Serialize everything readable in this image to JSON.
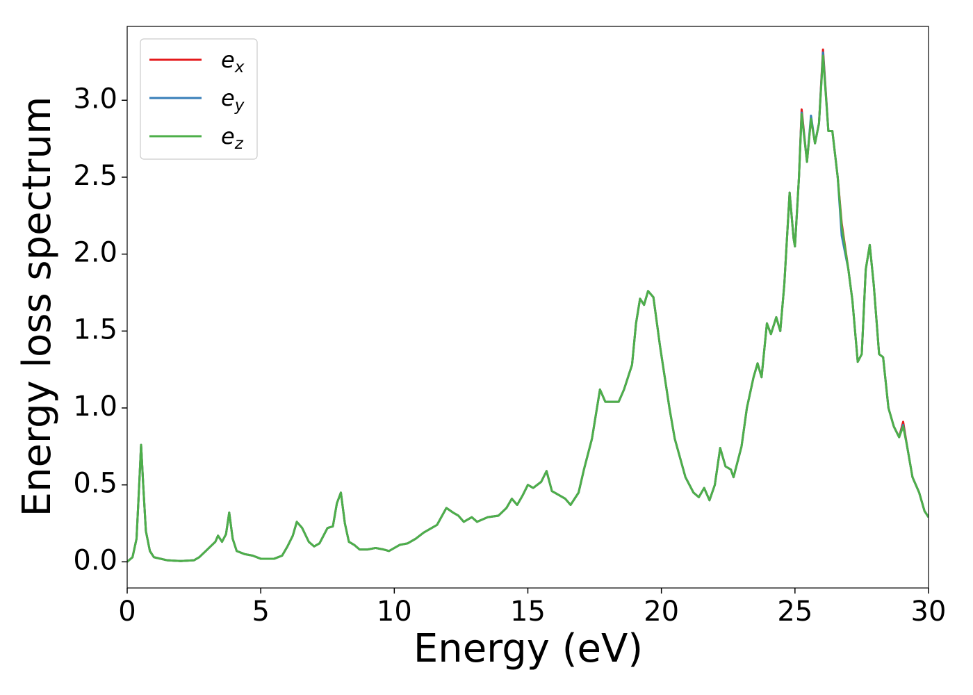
{
  "chart_data": {
    "type": "line",
    "xlabel": "Energy (eV)",
    "ylabel": "Energy loss spectrum",
    "xlim": [
      0,
      30
    ],
    "ylim": [
      -0.17,
      3.48
    ],
    "xticks": [
      0,
      5,
      10,
      15,
      20,
      25,
      30
    ],
    "yticks": [
      {
        "value": 0,
        "label": "0.0"
      },
      0.5,
      {
        "value": 1,
        "label": "1.0"
      },
      1.5,
      {
        "value": 2,
        "label": "2.0"
      },
      2.5,
      {
        "value": 3,
        "label": "3.0"
      }
    ],
    "legend": "upper left",
    "x": [
      0,
      0.2,
      0.35,
      0.45,
      0.52,
      0.6,
      0.7,
      0.85,
      1,
      1.5,
      2,
      2.5,
      2.7,
      3,
      3.3,
      3.4,
      3.55,
      3.7,
      3.82,
      3.95,
      4.1,
      4.4,
      4.7,
      5,
      5.5,
      5.8,
      6,
      6.2,
      6.35,
      6.55,
      6.8,
      7,
      7.2,
      7.5,
      7.7,
      7.85,
      8,
      8.15,
      8.3,
      8.5,
      8.7,
      9,
      9.3,
      9.6,
      9.8,
      10.2,
      10.5,
      10.8,
      11.1,
      11.4,
      11.6,
      11.95,
      12.2,
      12.4,
      12.6,
      12.9,
      13.1,
      13.5,
      13.9,
      14.2,
      14.4,
      14.6,
      14.8,
      15,
      15.2,
      15.5,
      15.7,
      15.9,
      16.1,
      16.4,
      16.6,
      16.9,
      17.1,
      17.4,
      17.7,
      17.9,
      18.2,
      18.4,
      18.6,
      18.9,
      19.05,
      19.2,
      19.35,
      19.5,
      19.7,
      19.95,
      20.3,
      20.5,
      20.9,
      21.2,
      21.4,
      21.6,
      21.8,
      22,
      22.2,
      22.4,
      22.6,
      22.7,
      23,
      23.2,
      23.45,
      23.6,
      23.75,
      23.95,
      24.1,
      24.3,
      24.45,
      24.6,
      24.8,
      24.95,
      25,
      25.15,
      25.25,
      25.45,
      25.6,
      25.75,
      25.9,
      26.05,
      26.25,
      26.4,
      26.6,
      26.75,
      27,
      27.15,
      27.35,
      27.5,
      27.65,
      27.8,
      27.95,
      28.15,
      28.3,
      28.5,
      28.7,
      28.9,
      29.05,
      29.2,
      29.4,
      29.65,
      29.85,
      30
    ],
    "series": [
      {
        "name": "ex",
        "color": "#e41a1c",
        "values": [
          0,
          0.03,
          0.15,
          0.5,
          0.76,
          0.5,
          0.2,
          0.07,
          0.03,
          0.01,
          0.005,
          0.01,
          0.03,
          0.08,
          0.13,
          0.17,
          0.13,
          0.18,
          0.32,
          0.15,
          0.07,
          0.05,
          0.04,
          0.02,
          0.02,
          0.04,
          0.1,
          0.17,
          0.26,
          0.22,
          0.13,
          0.1,
          0.12,
          0.22,
          0.23,
          0.38,
          0.45,
          0.25,
          0.13,
          0.11,
          0.08,
          0.08,
          0.09,
          0.08,
          0.07,
          0.11,
          0.12,
          0.15,
          0.19,
          0.22,
          0.24,
          0.35,
          0.32,
          0.3,
          0.26,
          0.29,
          0.26,
          0.29,
          0.3,
          0.35,
          0.41,
          0.37,
          0.43,
          0.5,
          0.48,
          0.52,
          0.59,
          0.46,
          0.44,
          0.41,
          0.37,
          0.45,
          0.6,
          0.8,
          1.12,
          1.04,
          1.04,
          1.04,
          1.12,
          1.28,
          1.55,
          1.71,
          1.67,
          1.76,
          1.72,
          1.4,
          1.0,
          0.8,
          0.55,
          0.45,
          0.42,
          0.48,
          0.4,
          0.5,
          0.74,
          0.62,
          0.6,
          0.55,
          0.75,
          1.0,
          1.2,
          1.29,
          1.2,
          1.55,
          1.48,
          1.59,
          1.5,
          1.8,
          2.4,
          2.1,
          2.05,
          2.5,
          2.94,
          2.6,
          2.88,
          2.72,
          2.85,
          3.33,
          2.8,
          2.8,
          2.5,
          2.2,
          1.9,
          1.7,
          1.3,
          1.35,
          1.9,
          2.06,
          1.8,
          1.35,
          1.33,
          1.0,
          0.88,
          0.81,
          0.91,
          0.75,
          0.55,
          0.45,
          0.33,
          0.29
        ]
      },
      {
        "name": "ey",
        "color": "#377eb8",
        "values": [
          0,
          0.03,
          0.15,
          0.5,
          0.76,
          0.5,
          0.2,
          0.07,
          0.03,
          0.01,
          0.005,
          0.01,
          0.03,
          0.08,
          0.13,
          0.17,
          0.13,
          0.18,
          0.32,
          0.15,
          0.07,
          0.05,
          0.04,
          0.02,
          0.02,
          0.04,
          0.1,
          0.17,
          0.26,
          0.22,
          0.13,
          0.1,
          0.12,
          0.22,
          0.23,
          0.38,
          0.45,
          0.25,
          0.13,
          0.11,
          0.08,
          0.08,
          0.09,
          0.08,
          0.07,
          0.11,
          0.12,
          0.15,
          0.19,
          0.22,
          0.24,
          0.35,
          0.32,
          0.3,
          0.26,
          0.29,
          0.26,
          0.29,
          0.3,
          0.35,
          0.41,
          0.37,
          0.43,
          0.5,
          0.48,
          0.52,
          0.59,
          0.46,
          0.44,
          0.41,
          0.37,
          0.45,
          0.6,
          0.8,
          1.12,
          1.04,
          1.04,
          1.04,
          1.12,
          1.28,
          1.55,
          1.71,
          1.67,
          1.76,
          1.72,
          1.4,
          1.0,
          0.8,
          0.55,
          0.45,
          0.42,
          0.48,
          0.4,
          0.5,
          0.74,
          0.62,
          0.6,
          0.55,
          0.75,
          1.0,
          1.2,
          1.29,
          1.2,
          1.55,
          1.48,
          1.59,
          1.5,
          1.8,
          2.4,
          2.1,
          2.05,
          2.5,
          2.92,
          2.6,
          2.9,
          2.72,
          2.85,
          3.31,
          2.8,
          2.8,
          2.5,
          2.12,
          1.9,
          1.7,
          1.3,
          1.35,
          1.9,
          2.06,
          1.8,
          1.35,
          1.33,
          1.0,
          0.88,
          0.81,
          0.89,
          0.75,
          0.55,
          0.45,
          0.33,
          0.29
        ]
      },
      {
        "name": "ez",
        "color": "#4daf4a",
        "values": [
          0,
          0.03,
          0.15,
          0.5,
          0.76,
          0.5,
          0.2,
          0.07,
          0.03,
          0.01,
          0.005,
          0.01,
          0.03,
          0.08,
          0.13,
          0.17,
          0.13,
          0.18,
          0.32,
          0.15,
          0.07,
          0.05,
          0.04,
          0.02,
          0.02,
          0.04,
          0.1,
          0.17,
          0.26,
          0.22,
          0.13,
          0.1,
          0.12,
          0.22,
          0.23,
          0.38,
          0.45,
          0.25,
          0.13,
          0.11,
          0.08,
          0.08,
          0.09,
          0.08,
          0.07,
          0.11,
          0.12,
          0.15,
          0.19,
          0.22,
          0.24,
          0.35,
          0.32,
          0.3,
          0.26,
          0.29,
          0.26,
          0.29,
          0.3,
          0.35,
          0.41,
          0.37,
          0.43,
          0.5,
          0.48,
          0.52,
          0.59,
          0.46,
          0.44,
          0.41,
          0.37,
          0.45,
          0.6,
          0.8,
          1.12,
          1.04,
          1.04,
          1.04,
          1.12,
          1.28,
          1.55,
          1.71,
          1.67,
          1.76,
          1.72,
          1.4,
          1.0,
          0.8,
          0.55,
          0.45,
          0.42,
          0.48,
          0.4,
          0.5,
          0.74,
          0.62,
          0.6,
          0.55,
          0.75,
          1.0,
          1.2,
          1.29,
          1.2,
          1.55,
          1.48,
          1.59,
          1.5,
          1.8,
          2.4,
          2.1,
          2.05,
          2.5,
          2.91,
          2.6,
          2.88,
          2.72,
          2.85,
          3.29,
          2.8,
          2.8,
          2.5,
          2.18,
          1.9,
          1.7,
          1.3,
          1.35,
          1.9,
          2.06,
          1.8,
          1.35,
          1.33,
          1.0,
          0.88,
          0.81,
          0.88,
          0.75,
          0.55,
          0.45,
          0.33,
          0.29
        ]
      }
    ]
  }
}
